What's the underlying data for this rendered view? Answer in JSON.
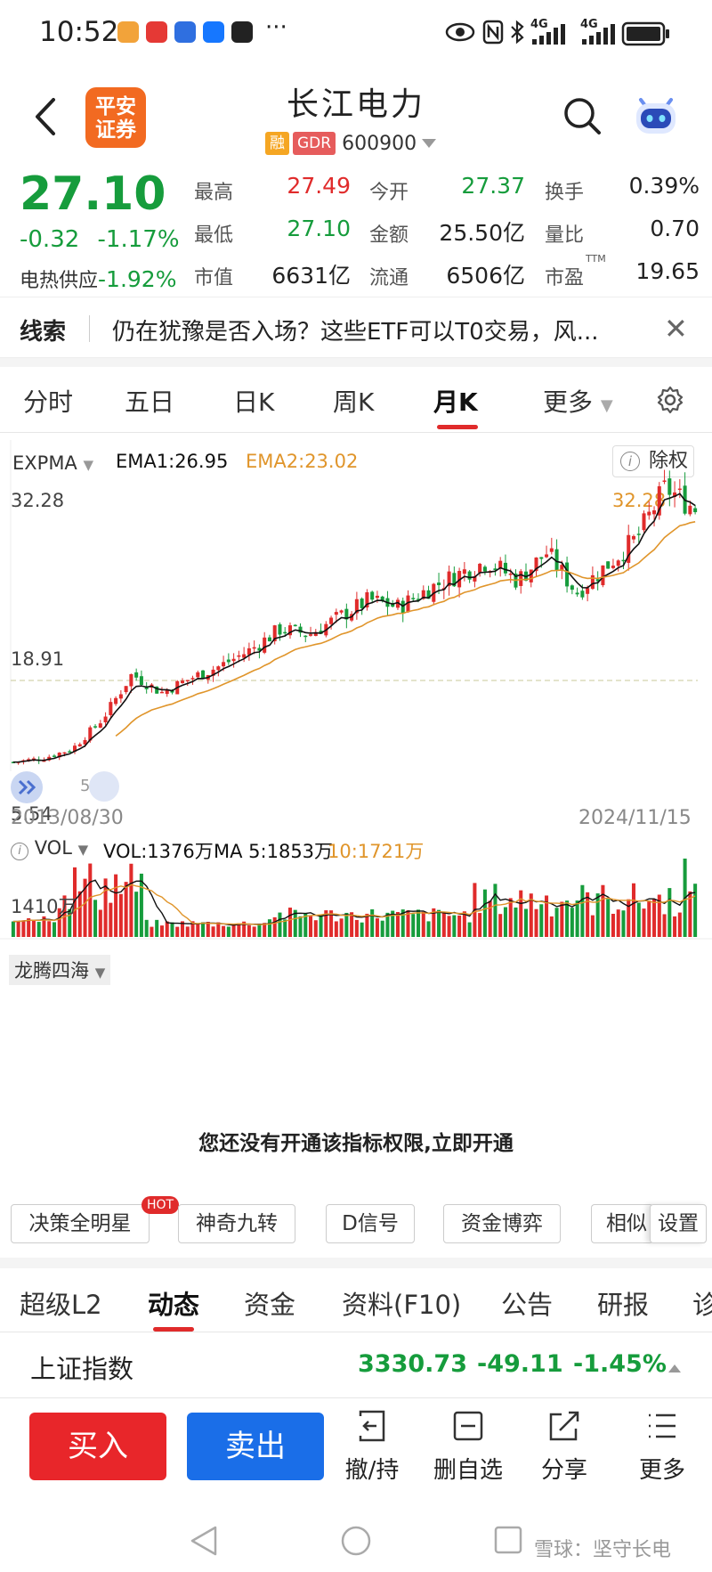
{
  "status_bar": {
    "time": "10:52",
    "signal_1": "4G",
    "signal_2": "4G"
  },
  "header": {
    "logo_line1": "平安",
    "logo_line2": "证券",
    "stock_name": "长江电力",
    "tag_margin": "融",
    "tag_gdr": "GDR",
    "stock_code": "600900"
  },
  "quote": {
    "price": "27.10",
    "change": "-0.32",
    "change_pct": "-1.17%",
    "sector_name": "电热供应",
    "sector_pct": "-1.92%",
    "fields": [
      {
        "label": "最高",
        "value": "27.49",
        "color": "#e02b2b"
      },
      {
        "label": "今开",
        "value": "27.37",
        "color": "#169c3c"
      },
      {
        "label": "换手",
        "value": "0.39%",
        "color": "#222222"
      },
      {
        "label": "最低",
        "value": "27.10",
        "color": "#169c3c"
      },
      {
        "label": "金额",
        "value": "25.50亿",
        "color": "#222222"
      },
      {
        "label": "量比",
        "value": "0.70",
        "color": "#222222"
      },
      {
        "label": "市值",
        "value": "6631亿",
        "color": "#222222"
      },
      {
        "label": "流通",
        "value": "6506亿",
        "color": "#222222"
      },
      {
        "label": "市盈",
        "value": "19.65",
        "color": "#222222"
      }
    ],
    "pe_sup": "TTM"
  },
  "news": {
    "tag": "线索",
    "text": "仍在犹豫是否入场？这些ETF可以T0交易，风..."
  },
  "period_tabs": [
    "分时",
    "五日",
    "日K",
    "周K",
    "月K",
    "更多"
  ],
  "active_period": "月K",
  "chart": {
    "indicator": "EXPMA",
    "ema1": "EMA1:26.95",
    "ema2": "EMA2:23.02",
    "ex_rights": "除权",
    "y_top": "32.28",
    "y_mid": "18.91",
    "y_low": "5.54",
    "max_label": "32.28",
    "min_label": "5.54",
    "start_date": "2013/08/30",
    "end_date": "2024/11/15",
    "vol_indicator": "VOL",
    "vol_value": "VOL:1376万",
    "vol_ma5": "MA 5:1853万",
    "vol_ma10": "10:1721万",
    "vol_axis": "1410万",
    "lower_indicator": "龙腾四海",
    "no_perm_text": "您还没有开通该指标权限,",
    "no_perm_link": "立即开通",
    "ema1_color": "#111111",
    "ema2_color": "#e0952b",
    "up_color": "#e02b2b",
    "down_color": "#169c3c"
  },
  "chart_data": {
    "type": "candlestick",
    "period": "monthly",
    "x_range": [
      "2013/08/30",
      "2024/11/15"
    ],
    "y_axis_ticks": [
      32.28,
      18.91,
      5.54
    ],
    "ylim": [
      5.54,
      32.28
    ],
    "high": 32.28,
    "low": 5.54,
    "close_trend": [
      6.3,
      6.6,
      7.4,
      9.8,
      13.5,
      12.0,
      13.2,
      14.2,
      15.5,
      17.2,
      16.8,
      18.2,
      19.6,
      19.0,
      20.5,
      21.7,
      22.8,
      21.2,
      23.5,
      20.2,
      22.4,
      24.6,
      28.8,
      27.1
    ],
    "series": [
      {
        "name": "EMA1",
        "last": 26.95
      },
      {
        "name": "EMA2",
        "last": 23.02
      }
    ],
    "volume_series": [
      {
        "name": "VOL",
        "last": "1376万"
      },
      {
        "name": "MA 5",
        "last": "1853万"
      },
      {
        "name": "10",
        "last": "1721万"
      }
    ]
  },
  "tool_buttons": [
    "决策全明星",
    "神奇九转",
    "D信号",
    "资金博弈",
    "相似",
    "设置"
  ],
  "hot_badge": "HOT",
  "sub_tabs": [
    "超级L2",
    "动态",
    "资金",
    "资料(F10)",
    "公告",
    "研报",
    "诊"
  ],
  "active_sub_tab": "动态",
  "index": {
    "name": "上证指数",
    "value": "3330.73",
    "change": "-49.11",
    "pct": "-1.45%"
  },
  "trade": {
    "buy": "买入",
    "sell": "卖出",
    "actions": [
      "撤/持",
      "删自选",
      "分享",
      "更多"
    ]
  },
  "watermark": "雪球：坚守长电"
}
